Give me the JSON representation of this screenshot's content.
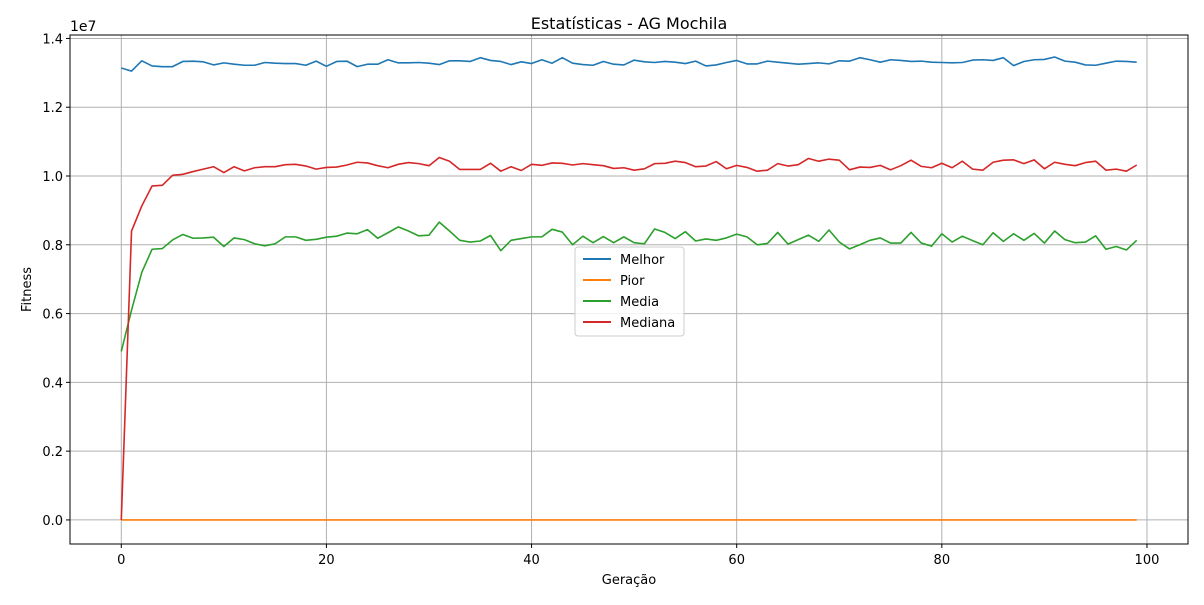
{
  "chart_data": {
    "type": "line",
    "title": "Estatísticas - AG Mochila",
    "xlabel": "Geração",
    "ylabel": "Fitness",
    "offset_text": "1e7",
    "xlim": [
      -5,
      104
    ],
    "ylim": [
      -0.07,
      1.41
    ],
    "x_ticks": [
      0,
      20,
      40,
      60,
      80,
      100
    ],
    "x_tick_labels": [
      "0",
      "20",
      "40",
      "60",
      "80",
      "100"
    ],
    "y_ticks": [
      0.0,
      0.2,
      0.4,
      0.6,
      0.8,
      1.0,
      1.2,
      1.4
    ],
    "y_tick_labels": [
      "0.0",
      "0.2",
      "0.4",
      "0.6",
      "0.8",
      "1.0",
      "1.2",
      "1.4"
    ],
    "grid": true,
    "legend_position": "center",
    "x": [
      0,
      1,
      2,
      3,
      4,
      5,
      6,
      7,
      8,
      9,
      10,
      11,
      12,
      13,
      14,
      15,
      16,
      17,
      18,
      19,
      20,
      21,
      22,
      23,
      24,
      25,
      26,
      27,
      28,
      29,
      30,
      31,
      32,
      33,
      34,
      35,
      36,
      37,
      38,
      39,
      40,
      41,
      42,
      43,
      44,
      45,
      46,
      47,
      48,
      49,
      50,
      51,
      52,
      53,
      54,
      55,
      56,
      57,
      58,
      59,
      60,
      61,
      62,
      63,
      64,
      65,
      66,
      67,
      68,
      69,
      70,
      71,
      72,
      73,
      74,
      75,
      76,
      77,
      78,
      79,
      80,
      81,
      82,
      83,
      84,
      85,
      86,
      87,
      88,
      89,
      90,
      91,
      92,
      93,
      94,
      95,
      96,
      97,
      98,
      99
    ],
    "series": [
      {
        "name": "Melhor",
        "color": "#1f77b4",
        "values": [
          1.314,
          1.305,
          1.335,
          1.32,
          1.318,
          1.318,
          1.333,
          1.334,
          1.332,
          1.323,
          1.329,
          1.325,
          1.322,
          1.322,
          1.33,
          1.328,
          1.327,
          1.327,
          1.322,
          1.334,
          1.319,
          1.333,
          1.334,
          1.318,
          1.325,
          1.325,
          1.338,
          1.329,
          1.329,
          1.33,
          1.328,
          1.324,
          1.335,
          1.335,
          1.333,
          1.344,
          1.336,
          1.333,
          1.324,
          1.332,
          1.327,
          1.338,
          1.328,
          1.344,
          1.328,
          1.324,
          1.322,
          1.333,
          1.325,
          1.323,
          1.337,
          1.332,
          1.33,
          1.333,
          1.331,
          1.327,
          1.334,
          1.32,
          1.323,
          1.33,
          1.336,
          1.326,
          1.326,
          1.334,
          1.331,
          1.328,
          1.325,
          1.327,
          1.329,
          1.326,
          1.335,
          1.334,
          1.344,
          1.338,
          1.331,
          1.338,
          1.336,
          1.333,
          1.334,
          1.331,
          1.33,
          1.329,
          1.33,
          1.337,
          1.338,
          1.336,
          1.344,
          1.321,
          1.333,
          1.338,
          1.339,
          1.346,
          1.334,
          1.331,
          1.323,
          1.322,
          1.328,
          1.334,
          1.333,
          1.331
        ]
      },
      {
        "name": "Pior",
        "color": "#ff7f0e",
        "values": [
          0,
          0,
          0,
          0,
          0,
          0,
          0,
          0,
          0,
          0,
          0,
          0,
          0,
          0,
          0,
          0,
          0,
          0,
          0,
          0,
          0,
          0,
          0,
          0,
          0,
          0,
          0,
          0,
          0,
          0,
          0,
          0,
          0,
          0,
          0,
          0,
          0,
          0,
          0,
          0,
          0,
          0,
          0,
          0,
          0,
          0,
          0,
          0,
          0,
          0,
          0,
          0,
          0,
          0,
          0,
          0,
          0,
          0,
          0,
          0,
          0,
          0,
          0,
          0,
          0,
          0,
          0,
          0,
          0,
          0,
          0,
          0,
          0,
          0,
          0,
          0,
          0,
          0,
          0,
          0,
          0,
          0,
          0,
          0,
          0,
          0,
          0,
          0,
          0,
          0,
          0,
          0,
          0,
          0,
          0,
          0,
          0,
          0,
          0,
          0
        ]
      },
      {
        "name": "Media",
        "color": "#2ca02c",
        "values": [
          0.49,
          0.61,
          0.72,
          0.787,
          0.789,
          0.814,
          0.83,
          0.819,
          0.82,
          0.822,
          0.795,
          0.82,
          0.815,
          0.803,
          0.797,
          0.803,
          0.823,
          0.823,
          0.813,
          0.816,
          0.822,
          0.825,
          0.834,
          0.832,
          0.844,
          0.819,
          0.835,
          0.852,
          0.84,
          0.826,
          0.828,
          0.866,
          0.84,
          0.813,
          0.808,
          0.811,
          0.827,
          0.783,
          0.813,
          0.818,
          0.823,
          0.823,
          0.845,
          0.837,
          0.8,
          0.825,
          0.806,
          0.824,
          0.806,
          0.823,
          0.806,
          0.803,
          0.846,
          0.836,
          0.818,
          0.838,
          0.811,
          0.817,
          0.813,
          0.82,
          0.831,
          0.823,
          0.8,
          0.804,
          0.836,
          0.802,
          0.815,
          0.828,
          0.81,
          0.843,
          0.808,
          0.788,
          0.8,
          0.813,
          0.82,
          0.805,
          0.805,
          0.836,
          0.805,
          0.796,
          0.832,
          0.808,
          0.825,
          0.812,
          0.8,
          0.835,
          0.81,
          0.832,
          0.813,
          0.833,
          0.805,
          0.84,
          0.815,
          0.806,
          0.808,
          0.826,
          0.787,
          0.795,
          0.785,
          0.813
        ]
      },
      {
        "name": "Mediana",
        "color": "#d62728",
        "values": [
          0.0,
          0.84,
          0.913,
          0.971,
          0.973,
          1.002,
          1.005,
          1.013,
          1.02,
          1.027,
          1.01,
          1.027,
          1.015,
          1.024,
          1.027,
          1.027,
          1.033,
          1.034,
          1.029,
          1.02,
          1.025,
          1.026,
          1.032,
          1.04,
          1.038,
          1.03,
          1.024,
          1.034,
          1.039,
          1.036,
          1.03,
          1.054,
          1.043,
          1.019,
          1.019,
          1.019,
          1.037,
          1.014,
          1.027,
          1.016,
          1.034,
          1.031,
          1.038,
          1.037,
          1.032,
          1.036,
          1.033,
          1.03,
          1.022,
          1.024,
          1.017,
          1.021,
          1.036,
          1.037,
          1.043,
          1.039,
          1.027,
          1.029,
          1.042,
          1.021,
          1.031,
          1.025,
          1.014,
          1.017,
          1.036,
          1.029,
          1.033,
          1.051,
          1.043,
          1.049,
          1.046,
          1.018,
          1.026,
          1.025,
          1.031,
          1.018,
          1.03,
          1.046,
          1.028,
          1.024,
          1.037,
          1.024,
          1.043,
          1.02,
          1.017,
          1.04,
          1.046,
          1.047,
          1.036,
          1.047,
          1.021,
          1.04,
          1.034,
          1.03,
          1.039,
          1.043,
          1.017,
          1.02,
          1.014,
          1.032
        ]
      }
    ]
  }
}
